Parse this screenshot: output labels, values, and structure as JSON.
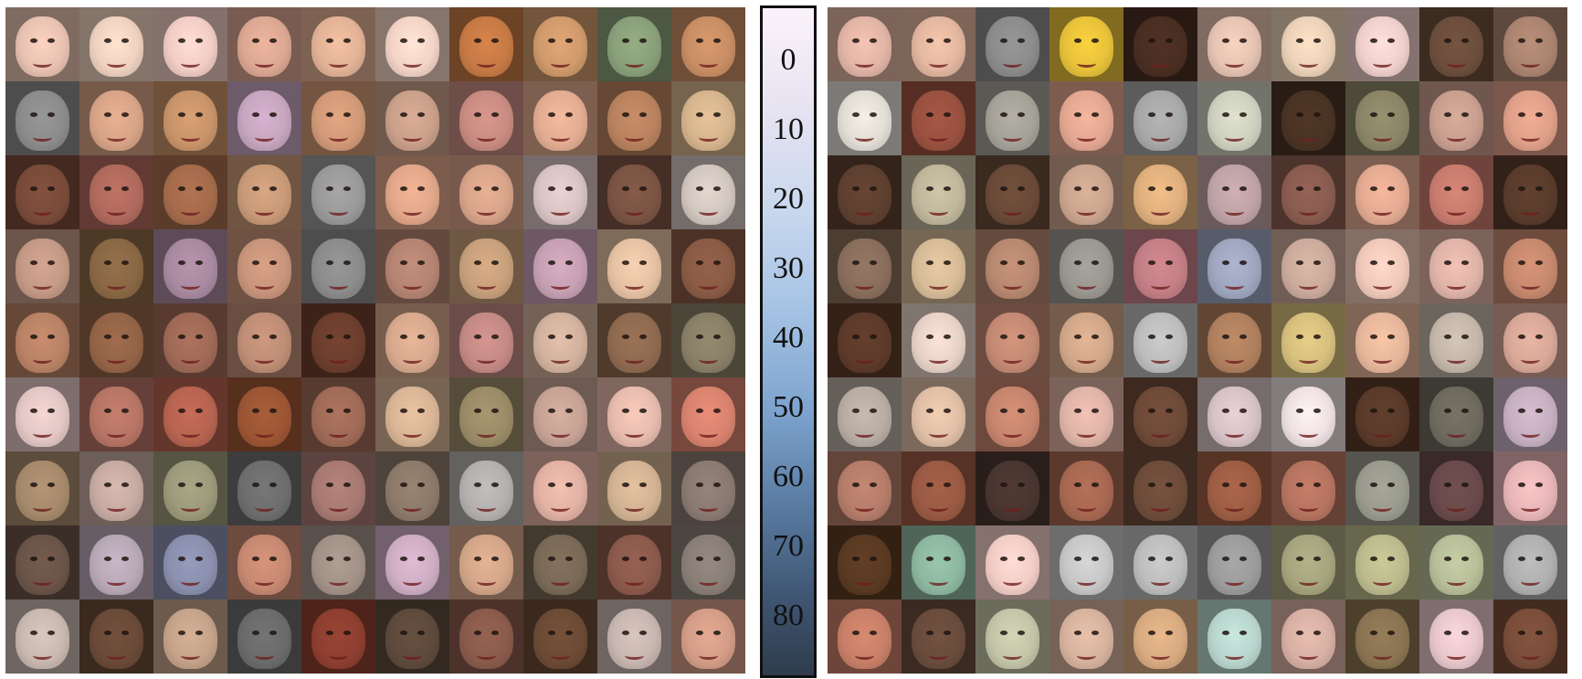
{
  "colorbar": {
    "ticks": [
      "0",
      "10",
      "20",
      "30",
      "40",
      "50",
      "60",
      "70",
      "80"
    ]
  },
  "left_grid": {
    "rows": [
      [
        "#e9c2b2",
        "#f0d2c0",
        "#f1cdc5",
        "#dca893",
        "#e3b397",
        "#f3d4c6",
        "#c77a45",
        "#d09a6c",
        "#8aa07a",
        "#c98e64"
      ],
      [
        "#8c8c8c",
        "#d8a487",
        "#c9946a",
        "#c7a6c0",
        "#d29a78",
        "#caa08a",
        "#c98c82",
        "#e3ad92",
        "#b9825f",
        "#d6b58e"
      ],
      [
        "#7a4b3a",
        "#b06a5d",
        "#a56b4c",
        "#c99a78",
        "#9a9a9a",
        "#e2a78a",
        "#d8a48a",
        "#d9c3c3",
        "#7b5444",
        "#d2c7bf"
      ],
      [
        "#c49a86",
        "#8a6845",
        "#a98aa0",
        "#c9957c",
        "#8c8c8c",
        "#b58472",
        "#c8a07c",
        "#c7a0b4",
        "#e6c2a4",
        "#8a5b45"
      ],
      [
        "#b98366",
        "#946447",
        "#a06a57",
        "#bf8e76",
        "#6d3e2e",
        "#d8a98e",
        "#c58a85",
        "#d2b29e",
        "#8f6a50",
        "#8a8068"
      ],
      [
        "#e3c7c4",
        "#b77565",
        "#b76450",
        "#9c5634",
        "#a06b57",
        "#d9b596",
        "#9b8c68",
        "#c7a395",
        "#e7bcae",
        "#d9836f"
      ],
      [
        "#a68a6c",
        "#c7aba3",
        "#9c9a7a",
        "#6e6e6e",
        "#a87a72",
        "#8d7a6a",
        "#b5b0b0",
        "#e2b2a4",
        "#d3b394",
        "#8a7a72"
      ],
      [
        "#6b5448",
        "#b9a9b7",
        "#8a90ae",
        "#c78972",
        "#a39288",
        "#cfaec4",
        "#d4a689",
        "#7a6a56",
        "#8c5a4c",
        "#8a7f77"
      ],
      [
        "#c9b9b0",
        "#6a4a38",
        "#c5a38a",
        "#6b6b6b",
        "#8e3f30",
        "#5e4a3c",
        "#8a5b4c",
        "#6c4b35",
        "#c8b6b0",
        "#d49d88"
      ]
    ]
  },
  "right_grid": {
    "rows": [
      [
        "#e2b5a6",
        "#e3b7a0",
        "#8c8c8c",
        "#e8c23a",
        "#4a2e22",
        "#e6c3b2",
        "#ecd2b8",
        "#f0d0cc",
        "#6c4e3c",
        "#ab8470"
      ],
      [
        "#e2ded6",
        "#9a5140",
        "#a5a298",
        "#e4a892",
        "#a8a8a8",
        "#cfd1c0",
        "#4a3324",
        "#8c8668",
        "#c99f8f",
        "#e0a089"
      ],
      [
        "#5e4030",
        "#c0b79c",
        "#6a4a38",
        "#cba58e",
        "#e0b07e",
        "#c0a3a6",
        "#8a5c50",
        "#e4aa92",
        "#c87c6e",
        "#5a3c2c"
      ],
      [
        "#8a6e5c",
        "#d7bc98",
        "#b88870",
        "#9b9791",
        "#c47f86",
        "#9fa7c0",
        "#ccab9c",
        "#f0c9ba",
        "#e0b4a8",
        "#c7896e"
      ],
      [
        "#5d3a2a",
        "#e8d2c8",
        "#c48a74",
        "#d2a88a",
        "#bdbdbd",
        "#b0805e",
        "#d7c07e",
        "#e7b79b",
        "#c4b7aa",
        "#d9a898"
      ],
      [
        "#b8ada3",
        "#e0bfa6",
        "#c7856e",
        "#e0b4a8",
        "#6e4a38",
        "#d7c2c6",
        "#efe1e3",
        "#5a3a2a",
        "#6e6a5e",
        "#c7b0c2"
      ],
      [
        "#b57d6a",
        "#9a5a44",
        "#4a3630",
        "#a86852",
        "#6e4c3a",
        "#9e5e44",
        "#b67460",
        "#9a9b8e",
        "#6a4a4a",
        "#e8b6b8"
      ],
      [
        "#5a3a22",
        "#8eb8a0",
        "#f2cdc6",
        "#c7c7c7",
        "#bdbdbd",
        "#9c9c9c",
        "#a7a57e",
        "#bcbb8e",
        "#b8be98",
        "#b0b0b0"
      ],
      [
        "#c88068",
        "#6a4c3c",
        "#c3c5a8",
        "#d7b39e",
        "#d9ab82",
        "#b9d6ce",
        "#d8b0a4",
        "#8a7452",
        "#e8c7cb",
        "#7a4e3a"
      ]
    ]
  }
}
